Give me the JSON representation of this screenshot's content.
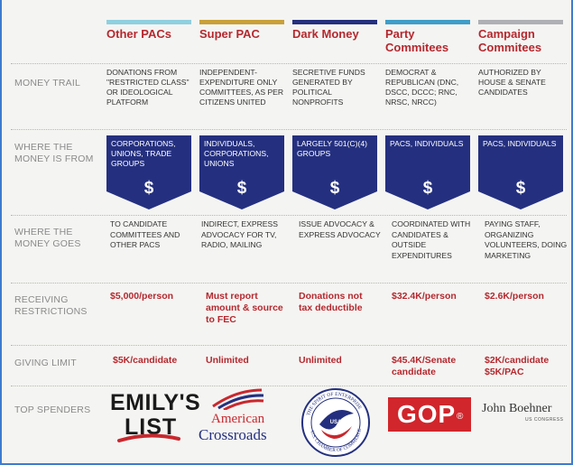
{
  "colors": {
    "accent": "#b5282e",
    "banner": "#24307f",
    "label": "#8a8a8a"
  },
  "row_labels": {
    "money_trail": "MONEY TRAIL",
    "money_from": "WHERE THE MONEY IS FROM",
    "money_goes": "WHERE THE MONEY GOES",
    "restrictions": "RECEIVING RESTRICTIONS",
    "giving_limit": "GIVING LIMIT",
    "top_spenders": "TOP SPENDERS"
  },
  "columns": [
    {
      "title": "Other PACs",
      "bar_color": "#8fd0df",
      "money_trail": "DONATIONS FROM \"RESTRICTED CLASS\" OR IDEOLOGICAL PLATFORM",
      "money_from": "CORPORATIONS, UNIONS, TRADE GROUPS",
      "money_goes": "TO CANDIDATE COMMITTEES AND OTHER PACS",
      "restrictions": "$5,000/person",
      "giving_limit": "$5K/candidate"
    },
    {
      "title": "Super PAC",
      "bar_color": "#c9a13a",
      "money_trail": "INDEPENDENT-EXPENDITURE ONLY COMMITTEES, AS PER CITIZENS UNITED",
      "money_from": "INDIVIDUALS, CORPORATIONS, UNIONS",
      "money_goes": "INDIRECT, EXPRESS ADVOCACY FOR TV, RADIO, MAILING",
      "restrictions": "Must report amount & source to FEC",
      "giving_limit": "Unlimited"
    },
    {
      "title": "Dark Money",
      "bar_color": "#24307f",
      "money_trail": "SECRETIVE FUNDS GENERATED BY POLITICAL NONPROFITS",
      "money_from": "LARGELY 501(C)(4) GROUPS",
      "money_goes": "ISSUE ADVOCACY & EXPRESS ADVOCACY",
      "restrictions": "Donations not tax deductible",
      "giving_limit": "Unlimited"
    },
    {
      "title": "Party Commitees",
      "bar_color": "#3f9ec9",
      "money_trail": "DEMOCRAT & REPUBLICAN (DNC, DSCC, DCCC; RNC, NRSC, NRCC)",
      "money_from": "PACS, INDIVIDUALS",
      "money_goes": "COORDINATED WITH CANDIDATES & OUTSIDE EXPENDITURES",
      "restrictions": "$32.4K/person",
      "giving_limit": "$45.4K/Senate candidate"
    },
    {
      "title": "Campaign Commitees",
      "bar_color": "#aeb0b5",
      "money_trail": "AUTHORIZED BY HOUSE & SENATE CANDIDATES",
      "money_from": "PACS, INDIVIDUALS",
      "money_goes": "PAYING STAFF, ORGANIZING VOLUNTEERS, DOING MARKETING",
      "restrictions": "$2.6K/person",
      "giving_limit": "$2K/candidate $5K/PAC"
    }
  ],
  "banner_symbol": "$",
  "logos": {
    "emilys_list": {
      "line1": "EMILY'S",
      "line2": "LIST"
    },
    "american_crossroads": {
      "line1": "American",
      "line2": "Crossroads"
    },
    "chamber": {
      "center": "USA",
      "ring_top": "THE SPIRIT OF ENTERPRISE",
      "ring_bottom": "U.S. CHAMBER OF COMMERCE"
    },
    "gop": {
      "text": "GOP",
      "mark": "®"
    },
    "boehner": {
      "name": "John Boehner",
      "sub": "US CONGRESS"
    }
  }
}
